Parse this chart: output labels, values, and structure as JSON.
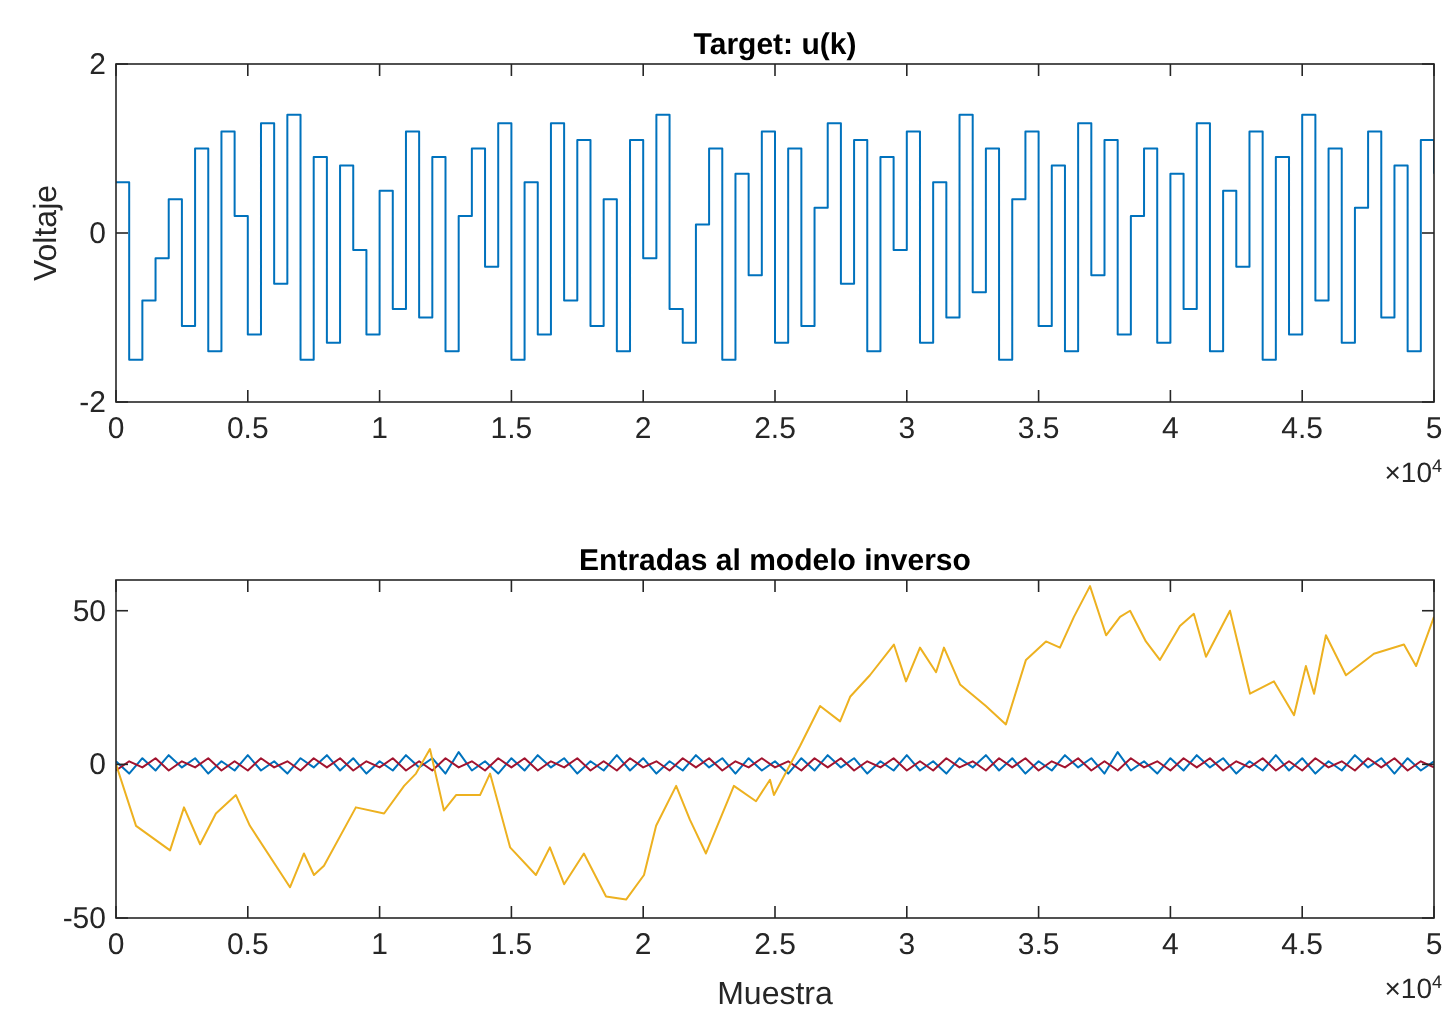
{
  "chart_data": [
    {
      "type": "step",
      "title": "Target: u(k)",
      "ylabel": "Voltaje",
      "x": [
        0,
        0.05,
        0.1,
        0.15,
        0.2,
        0.25,
        0.3,
        0.35,
        0.4,
        0.45,
        0.5,
        0.55,
        0.6,
        0.65,
        0.7,
        0.75,
        0.8,
        0.85,
        0.9,
        0.95,
        1,
        1.05,
        1.1,
        1.15,
        1.2,
        1.25,
        1.3,
        1.35,
        1.4,
        1.45,
        1.5,
        1.55,
        1.6,
        1.65,
        1.7,
        1.75,
        1.8,
        1.85,
        1.9,
        1.95,
        2,
        2.05,
        2.1,
        2.15,
        2.2,
        2.25,
        2.3,
        2.35,
        2.4,
        2.45,
        2.5,
        2.55,
        2.6,
        2.65,
        2.7,
        2.75,
        2.8,
        2.85,
        2.9,
        2.95,
        3,
        3.05,
        3.1,
        3.15,
        3.2,
        3.25,
        3.3,
        3.35,
        3.4,
        3.45,
        3.5,
        3.55,
        3.6,
        3.65,
        3.7,
        3.75,
        3.8,
        3.85,
        3.9,
        3.95,
        4,
        4.05,
        4.1,
        4.15,
        4.2,
        4.25,
        4.3,
        4.35,
        4.4,
        4.45,
        4.5,
        4.55,
        4.6,
        4.65,
        4.7,
        4.75,
        4.8,
        4.85,
        4.9,
        4.95,
        5
      ],
      "series": [
        {
          "color": "#0072bd",
          "values": [
            0.6,
            -1.5,
            -0.8,
            -0.3,
            0.4,
            -1.1,
            1.0,
            -1.4,
            1.2,
            0.2,
            -1.2,
            1.3,
            -0.6,
            1.4,
            -1.5,
            0.9,
            -1.3,
            0.8,
            -0.2,
            -1.2,
            0.5,
            -0.9,
            1.2,
            -1.0,
            0.9,
            -1.4,
            0.2,
            1.0,
            -0.4,
            1.3,
            -1.5,
            0.6,
            -1.2,
            1.3,
            -0.8,
            1.1,
            -1.1,
            0.4,
            -1.4,
            1.1,
            -0.3,
            1.4,
            -0.9,
            -1.3,
            0.1,
            1.0,
            -1.5,
            0.7,
            -0.5,
            1.2,
            -1.3,
            1.0,
            -1.1,
            0.3,
            1.3,
            -0.6,
            1.1,
            -1.4,
            0.9,
            -0.2,
            1.2,
            -1.3,
            0.6,
            -1.0,
            1.4,
            -0.7,
            1.0,
            -1.5,
            0.4,
            1.2,
            -1.1,
            0.8,
            -1.4,
            1.3,
            -0.5,
            1.1,
            -1.2,
            0.2,
            1.0,
            -1.3,
            0.7,
            -0.9,
            1.3,
            -1.4,
            0.5,
            -0.4,
            1.2,
            -1.5,
            0.9,
            -1.2,
            1.4,
            -0.8,
            1.0,
            -1.3,
            0.3,
            1.2,
            -1.0,
            0.8,
            -1.4,
            1.1,
            0.7
          ]
        }
      ],
      "xlim": [
        0,
        5
      ],
      "xticks": [
        0,
        0.5,
        1,
        1.5,
        2,
        2.5,
        3,
        3.5,
        4,
        4.5,
        5
      ],
      "ylim": [
        -2,
        2
      ],
      "yticks": [
        -2,
        0,
        2
      ],
      "annotations": [
        "×10$^{4}$"
      ]
    },
    {
      "type": "line",
      "title": "Entradas al modelo inverso",
      "xlabel": "Muestra",
      "x": [
        0,
        0.05,
        0.1,
        0.15,
        0.2,
        0.25,
        0.3,
        0.35,
        0.4,
        0.45,
        0.5,
        0.55,
        0.6,
        0.65,
        0.7,
        0.75,
        0.8,
        0.85,
        0.9,
        0.95,
        1,
        1.05,
        1.1,
        1.15,
        1.2,
        1.25,
        1.3,
        1.35,
        1.4,
        1.45,
        1.5,
        1.55,
        1.6,
        1.65,
        1.7,
        1.75,
        1.8,
        1.85,
        1.9,
        1.95,
        2,
        2.05,
        2.1,
        2.15,
        2.2,
        2.25,
        2.3,
        2.35,
        2.4,
        2.45,
        2.5,
        2.55,
        2.6,
        2.65,
        2.7,
        2.75,
        2.8,
        2.85,
        2.9,
        2.95,
        3,
        3.05,
        3.1,
        3.15,
        3.2,
        3.25,
        3.3,
        3.35,
        3.4,
        3.45,
        3.5,
        3.55,
        3.6,
        3.65,
        3.7,
        3.75,
        3.8,
        3.85,
        3.9,
        3.95,
        4,
        4.05,
        4.1,
        4.15,
        4.2,
        4.25,
        4.3,
        4.35,
        4.4,
        4.45,
        4.5,
        4.55,
        4.6,
        4.65,
        4.7,
        4.75,
        4.8,
        4.85,
        4.9,
        4.95,
        5
      ],
      "series": [
        {
          "color": "#0072bd",
          "values": [
            1,
            -3,
            2,
            -2,
            3,
            -1,
            2,
            -3,
            1,
            -2,
            3,
            -2,
            1,
            -3,
            2,
            -1,
            3,
            -2,
            2,
            -3,
            1,
            -2,
            3,
            -1,
            2,
            -3,
            4,
            -2,
            1,
            -3,
            2,
            -2,
            3,
            -1,
            2,
            -3,
            1,
            -2,
            3,
            -2,
            2,
            -3,
            1,
            -2,
            3,
            -1,
            2,
            -3,
            2,
            -2,
            1,
            -3,
            2,
            -2,
            3,
            -1,
            2,
            -3,
            1,
            -2,
            3,
            -2,
            1,
            -3,
            2,
            -1,
            3,
            -2,
            2,
            -3,
            1,
            -2,
            3,
            -1,
            2,
            -3,
            4,
            -2,
            1,
            -3,
            2,
            -2,
            3,
            -1,
            2,
            -3,
            1,
            -2,
            3,
            -2,
            2,
            -3,
            1,
            -2,
            3,
            -1,
            2,
            -3,
            2,
            -2,
            1
          ]
        },
        {
          "color": "#a2142f",
          "values": [
            -2,
            1,
            -1,
            2,
            -2,
            1,
            -1,
            2,
            -2,
            1,
            -2,
            2,
            -1,
            1,
            -2,
            2,
            -1,
            2,
            -2,
            1,
            -1,
            2,
            -2,
            1,
            -2,
            2,
            -1,
            1,
            -2,
            2,
            -1,
            2,
            -2,
            1,
            -1,
            2,
            -2,
            1,
            -2,
            2,
            -1,
            1,
            -2,
            2,
            -1,
            2,
            -2,
            1,
            -1,
            2,
            -1,
            1,
            -2,
            2,
            -1,
            2,
            -2,
            1,
            -1,
            2,
            -2,
            1,
            -2,
            2,
            -1,
            1,
            -2,
            2,
            -1,
            2,
            -2,
            1,
            -1,
            2,
            -2,
            1,
            -2,
            2,
            -1,
            1,
            -2,
            2,
            -1,
            2,
            -2,
            1,
            -1,
            2,
            -2,
            1,
            -2,
            2,
            -1,
            1,
            -2,
            2,
            -1,
            2,
            -2,
            1,
            -1
          ]
        },
        {
          "color": "#edb120",
          "x": [
            0,
            0.076,
            0.205,
            0.258,
            0.319,
            0.379,
            0.455,
            0.508,
            0.66,
            0.713,
            0.751,
            0.789,
            0.91,
            1.017,
            1.093,
            1.138,
            1.191,
            1.244,
            1.29,
            1.381,
            1.419,
            1.495,
            1.593,
            1.646,
            1.7,
            1.775,
            1.859,
            1.935,
            2.003,
            2.049,
            2.125,
            2.177,
            2.238,
            2.344,
            2.428,
            2.481,
            2.496,
            2.595,
            2.671,
            2.747,
            2.785,
            2.86,
            2.951,
            2.997,
            3.05,
            3.111,
            3.141,
            3.202,
            3.3,
            3.376,
            3.452,
            3.528,
            3.581,
            3.634,
            3.695,
            3.756,
            3.809,
            3.847,
            3.907,
            3.96,
            4.036,
            4.089,
            4.135,
            4.226,
            4.302,
            4.393,
            4.469,
            4.514,
            4.545,
            4.59,
            4.666,
            4.772,
            4.886,
            4.932,
            5
          ],
          "values": [
            0,
            -20,
            -28,
            -14,
            -26,
            -16,
            -10,
            -20,
            -40,
            -29,
            -36,
            -33,
            -14,
            -16,
            -7,
            -3,
            5,
            -15,
            -10,
            -10,
            -3,
            -27,
            -36,
            -27,
            -39,
            -29,
            -43,
            -44,
            -36,
            -20,
            -7,
            -18,
            -29,
            -7,
            -12,
            -5,
            -10,
            6,
            19,
            14,
            22,
            29,
            39,
            27,
            38,
            30,
            38,
            26,
            19,
            13,
            34,
            40,
            38,
            48,
            58,
            42,
            48,
            50,
            40,
            34,
            45,
            49,
            35,
            50,
            23,
            27,
            16,
            32,
            23,
            42,
            29,
            36,
            39,
            32,
            48
          ]
        }
      ],
      "xlim": [
        0,
        5
      ],
      "xticks": [
        0,
        0.5,
        1,
        1.5,
        2,
        2.5,
        3,
        3.5,
        4,
        4.5,
        5
      ],
      "ylim": [
        -50,
        60
      ],
      "yticks": [
        -50,
        0,
        50
      ],
      "annotations": [
        "×10$^{4}$"
      ]
    }
  ]
}
